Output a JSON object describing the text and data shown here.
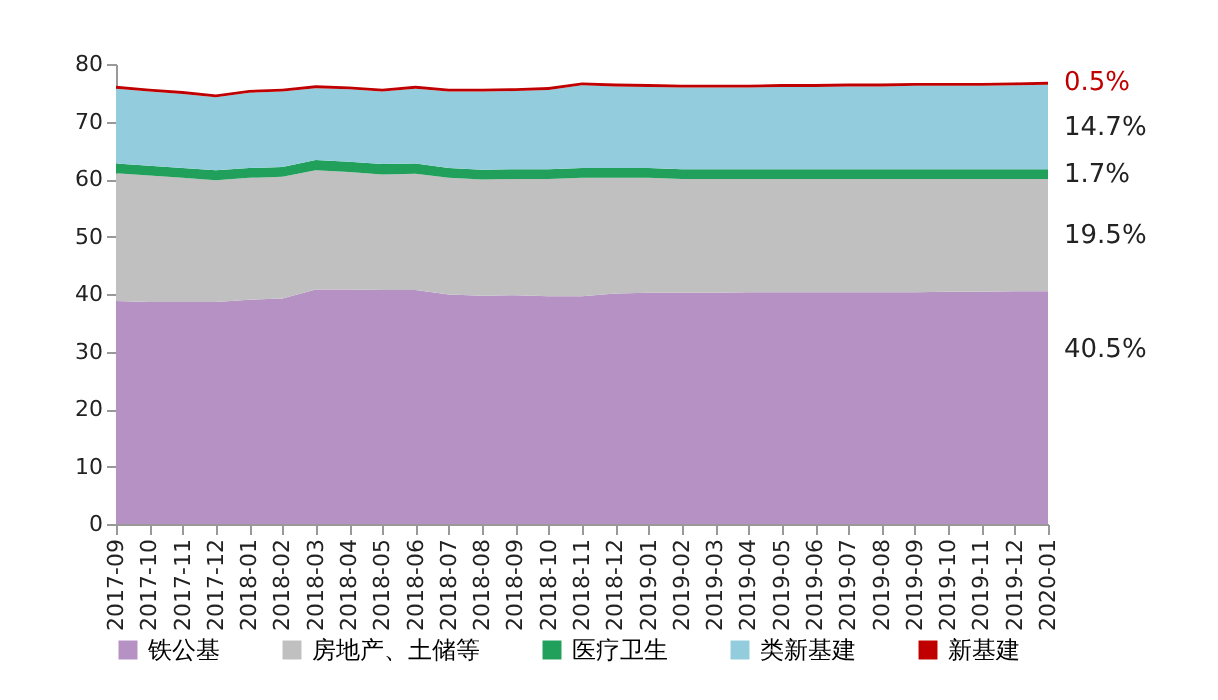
{
  "chart_data": {
    "type": "area",
    "stacked": true,
    "categories": [
      "2017-09",
      "2017-10",
      "2017-11",
      "2017-12",
      "2018-01",
      "2018-02",
      "2018-03",
      "2018-04",
      "2018-05",
      "2018-06",
      "2018-07",
      "2018-08",
      "2018-09",
      "2018-10",
      "2018-11",
      "2018-12",
      "2019-01",
      "2019-02",
      "2019-03",
      "2019-04",
      "2019-05",
      "2019-06",
      "2019-07",
      "2019-08",
      "2019-09",
      "2019-10",
      "2019-11",
      "2019-12",
      "2020-01"
    ],
    "series": [
      {
        "name": "铁公基",
        "color": "#b592c3",
        "values": [
          38.8,
          38.6,
          38.6,
          38.6,
          39.0,
          39.2,
          40.8,
          40.8,
          40.7,
          40.7,
          39.9,
          39.7,
          39.8,
          39.6,
          39.6,
          40.1,
          40.2,
          40.2,
          40.2,
          40.3,
          40.3,
          40.3,
          40.3,
          40.3,
          40.3,
          40.4,
          40.4,
          40.5,
          40.5
        ],
        "value_labels": [
          null,
          null,
          null,
          null,
          null,
          null,
          null,
          null,
          null,
          null,
          null,
          null,
          null,
          null,
          null,
          null,
          null,
          null,
          null,
          null,
          null,
          null,
          null,
          null,
          null,
          null,
          null,
          null,
          "40.5%"
        ]
      },
      {
        "name": "房地产、土储等",
        "color": "#c0c0c0",
        "values": [
          22.2,
          22.0,
          21.6,
          21.2,
          21.2,
          21.2,
          20.7,
          20.4,
          20.1,
          20.2,
          20.3,
          20.2,
          20.2,
          20.4,
          20.6,
          20.1,
          20.0,
          19.8,
          19.8,
          19.7,
          19.7,
          19.7,
          19.7,
          19.7,
          19.7,
          19.6,
          19.6,
          19.5,
          19.5
        ],
        "value_labels": [
          null,
          null,
          null,
          null,
          null,
          null,
          null,
          null,
          null,
          null,
          null,
          null,
          null,
          null,
          null,
          null,
          null,
          null,
          null,
          null,
          null,
          null,
          null,
          null,
          null,
          null,
          null,
          null,
          "19.5%"
        ]
      },
      {
        "name": "医疗卫生",
        "color": "#21a05c",
        "values": [
          1.7,
          1.7,
          1.7,
          1.7,
          1.7,
          1.7,
          1.8,
          1.8,
          1.8,
          1.8,
          1.7,
          1.7,
          1.7,
          1.7,
          1.7,
          1.7,
          1.7,
          1.7,
          1.7,
          1.7,
          1.7,
          1.7,
          1.7,
          1.7,
          1.7,
          1.7,
          1.7,
          1.7,
          1.7
        ],
        "value_labels": [
          null,
          null,
          null,
          null,
          null,
          null,
          null,
          null,
          null,
          null,
          null,
          null,
          null,
          null,
          null,
          null,
          null,
          null,
          null,
          null,
          null,
          null,
          null,
          null,
          null,
          null,
          null,
          null,
          "1.7%"
        ]
      },
      {
        "name": "类新基建",
        "color": "#93cddd",
        "values": [
          13.0,
          12.9,
          12.9,
          12.7,
          13.1,
          13.1,
          12.5,
          12.6,
          12.6,
          13.0,
          13.3,
          13.6,
          13.6,
          13.8,
          14.4,
          14.2,
          14.1,
          14.2,
          14.2,
          14.2,
          14.3,
          14.3,
          14.4,
          14.4,
          14.5,
          14.5,
          14.5,
          14.6,
          14.7
        ],
        "value_labels": [
          null,
          null,
          null,
          null,
          null,
          null,
          null,
          null,
          null,
          null,
          null,
          null,
          null,
          null,
          null,
          null,
          null,
          null,
          null,
          null,
          null,
          null,
          null,
          null,
          null,
          null,
          null,
          null,
          "14.7%"
        ]
      },
      {
        "name": "新基建",
        "color": "#c00000",
        "values": [
          0.5,
          0.5,
          0.5,
          0.5,
          0.5,
          0.5,
          0.5,
          0.5,
          0.5,
          0.5,
          0.5,
          0.5,
          0.5,
          0.5,
          0.5,
          0.5,
          0.5,
          0.5,
          0.5,
          0.5,
          0.5,
          0.5,
          0.5,
          0.5,
          0.5,
          0.5,
          0.5,
          0.5,
          0.5
        ],
        "value_labels": [
          null,
          null,
          null,
          null,
          null,
          null,
          null,
          null,
          null,
          null,
          null,
          null,
          null,
          null,
          null,
          null,
          null,
          null,
          null,
          null,
          null,
          null,
          null,
          null,
          null,
          null,
          null,
          null,
          "0.5%"
        ]
      }
    ],
    "ylim": [
      0,
      80
    ],
    "yticks": [
      0,
      10,
      20,
      30,
      40,
      50,
      60,
      70,
      80
    ],
    "grid": false,
    "legend": "bottom"
  }
}
